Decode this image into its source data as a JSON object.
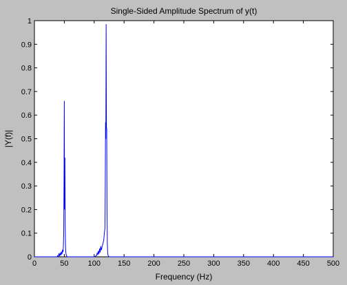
{
  "chart_data": {
    "type": "line",
    "title": "Single-Sided Amplitude Spectrum of y(t)",
    "xlabel": "Frequency (Hz)",
    "ylabel": "|Y(f)|",
    "xlim": [
      0,
      500
    ],
    "ylim": [
      0,
      1
    ],
    "grid": false,
    "xticks": [
      0,
      50,
      100,
      150,
      200,
      250,
      300,
      350,
      400,
      450,
      500
    ],
    "yticks": [
      0,
      0.1,
      0.2,
      0.3,
      0.4,
      0.5,
      0.6,
      0.7,
      0.8,
      0.9,
      1
    ],
    "xtick_labels": [
      "0",
      "50",
      "100",
      "150",
      "200",
      "250",
      "300",
      "350",
      "400",
      "450",
      "500"
    ],
    "ytick_labels": [
      "0",
      "0.1",
      "0.2",
      "0.3",
      "0.4",
      "0.5",
      "0.6",
      "0.7",
      "0.8",
      "0.9",
      "1"
    ],
    "series": [
      {
        "color": "#0000ff",
        "x": [
          0,
          38,
          39,
          40,
          41,
          42,
          43,
          44,
          45,
          46,
          47,
          48,
          48.5,
          49,
          49.5,
          50,
          50.5,
          51,
          51.5,
          52,
          52.5,
          53,
          54,
          55,
          100,
          104,
          105,
          106,
          107,
          108,
          109,
          110,
          111,
          112,
          113,
          114,
          115,
          116,
          117,
          118,
          118.5,
          119,
          119.5,
          120,
          120.5,
          121,
          121.5,
          122,
          122.5,
          123,
          124,
          125,
          500
        ],
        "y": [
          0,
          0,
          0.005,
          0.002,
          0.012,
          0.004,
          0.016,
          0.006,
          0.022,
          0.01,
          0.03,
          0.02,
          0.05,
          0.1,
          0.32,
          0.66,
          0.2,
          0.42,
          0.14,
          0.05,
          0.02,
          0.01,
          0.003,
          0,
          0,
          0.005,
          0.015,
          0.008,
          0.025,
          0.012,
          0.035,
          0.018,
          0.045,
          0.028,
          0.04,
          0.05,
          0.06,
          0.07,
          0.1,
          0.12,
          0.3,
          0.57,
          0.5,
          0.985,
          0.55,
          0.54,
          0.2,
          0.06,
          0.02,
          0.008,
          0.002,
          0,
          0
        ]
      }
    ]
  }
}
